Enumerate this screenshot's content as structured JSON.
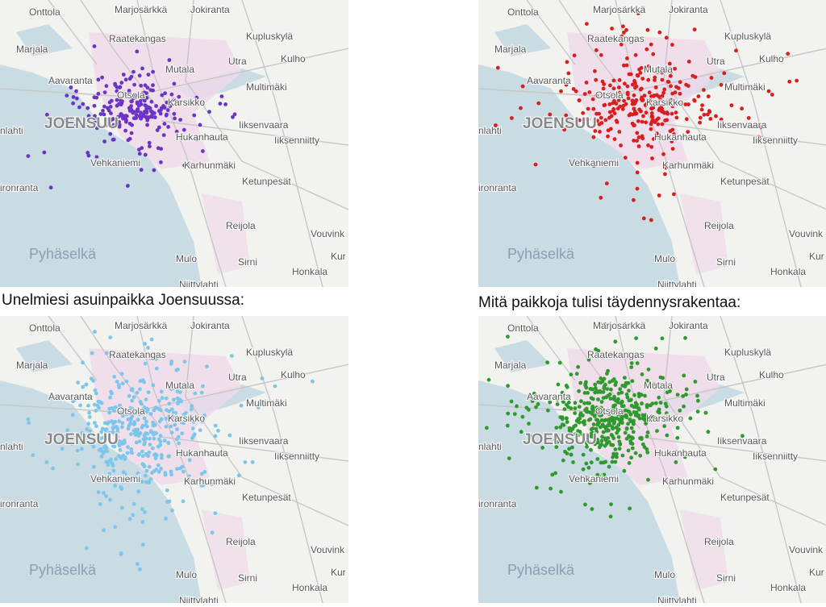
{
  "captions": [
    "Unelmiesi asuinpaikka Joensuussa:",
    "Mitä paikkoja tulisi täydennysrakentaa:"
  ],
  "map_labels": [
    "Onttola",
    "Marjosärkkä",
    "Jokiranta",
    "Kupluskylä",
    "Raatekangas",
    "Marjala",
    "Utra",
    "Kulho",
    "Mutala",
    "Aavaranta",
    "Multimäki",
    "Otsola",
    "Karsikko",
    "JOENSUU",
    "nlahti",
    "Iiksenvaara",
    "Hukanhauta",
    "Iiksenniitty",
    "Vehkaniemi",
    "Karhunmäki",
    "Ketunpesät",
    "ironranta",
    "Reijola",
    "Vouvink",
    "Pyhäselkä",
    "Mulo",
    "Sirni",
    "Kur",
    "Honkala",
    "Niittylahti"
  ]
}
